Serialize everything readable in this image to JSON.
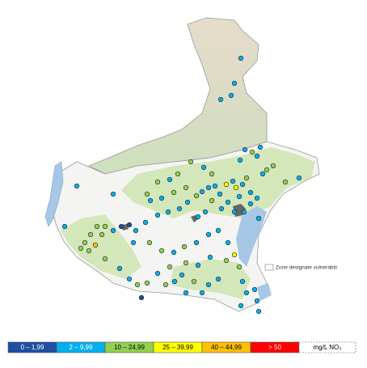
{
  "map": {
    "zone_label": "Zone designate vulnerabili",
    "legend": {
      "classes": [
        {
          "label": "0 – 1,99",
          "color": "#1f4fa3"
        },
        {
          "label": "2 – 9,99",
          "color": "#00b0f0"
        },
        {
          "label": "10 – 24,99",
          "color": "#92d050"
        },
        {
          "label": "25 – 39,99",
          "color": "#ffff00"
        },
        {
          "label": "40 – 44,99",
          "color": "#ffc000"
        },
        {
          "label": "> 50",
          "color": "#ff0000"
        }
      ],
      "unit": "mg/L NO₃"
    }
  }
}
